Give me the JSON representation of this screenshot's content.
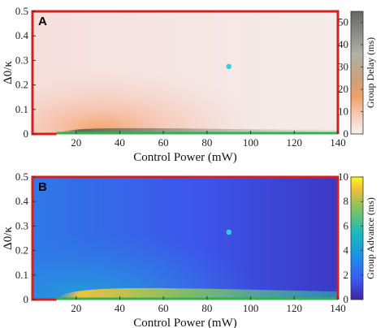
{
  "chart_data": [
    {
      "type": "heatmap",
      "panel_label": "A",
      "xlabel": "Control Power (mW)",
      "ylabel": "Δ0/κ",
      "xlim": [
        0,
        140
      ],
      "ylim": [
        0,
        0.5
      ],
      "x_ticks": [
        "20",
        "40",
        "60",
        "80",
        "100",
        "120",
        "140"
      ],
      "y_ticks": [
        "0",
        "0.1",
        "0.2",
        "0.3",
        "0.4",
        "0.5"
      ],
      "colorbar": {
        "label": "Group Delay (ms)",
        "ticks": [
          "0",
          "10",
          "20",
          "30",
          "40",
          "50"
        ],
        "range": [
          0,
          55
        ]
      },
      "highlight_point": {
        "x": 90,
        "y": 0.275,
        "color": "#2ad4e6"
      },
      "boundary_colors": {
        "outer": "#d62020",
        "bottom": "#2fb34a"
      }
    },
    {
      "type": "heatmap",
      "panel_label": "B",
      "xlabel": "Control Power (mW)",
      "ylabel": "Δ0/κ",
      "xlim": [
        0,
        140
      ],
      "ylim": [
        0,
        0.5
      ],
      "x_ticks": [
        "20",
        "40",
        "60",
        "80",
        "100",
        "120",
        "140"
      ],
      "y_ticks": [
        "0",
        "0.1",
        "0.2",
        "0.3",
        "0.4",
        "0.5"
      ],
      "colorbar": {
        "label": "Group Advance (ms)",
        "ticks": [
          "0",
          "2",
          "4",
          "6",
          "8",
          "10"
        ],
        "range": [
          0,
          10
        ]
      },
      "highlight_point": {
        "x": 90,
        "y": 0.275,
        "color": "#2ad4e6"
      },
      "boundary_colors": {
        "outer": "#d62020",
        "bottom": "#2fb34a"
      }
    }
  ]
}
